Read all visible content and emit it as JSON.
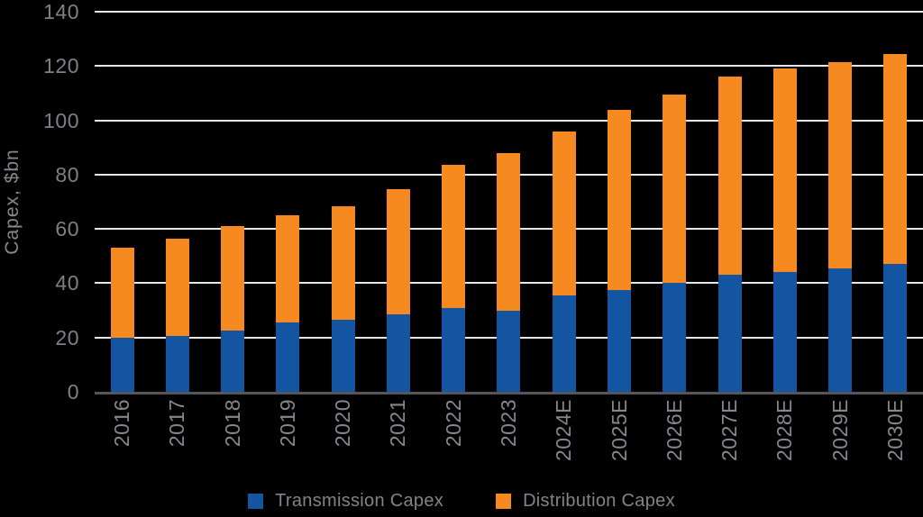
{
  "chart_data": {
    "type": "bar",
    "stacked": true,
    "title": "",
    "xlabel": "",
    "ylabel": "Capex, $bn",
    "ylim": [
      0,
      140
    ],
    "ytick_step": 20,
    "yticks": [
      0,
      20,
      40,
      60,
      80,
      100,
      120,
      140
    ],
    "grid": true,
    "legend_position": "bottom",
    "categories": [
      "2016",
      "2017",
      "2018",
      "2019",
      "2020",
      "2021",
      "2022",
      "2023",
      "2024E",
      "2025E",
      "2026E",
      "2027E",
      "2028E",
      "2029E",
      "2030E"
    ],
    "series": [
      {
        "name": "Transmission Capex",
        "color": "#1355A0",
        "values": [
          20,
          20.5,
          22.5,
          25.5,
          26.5,
          28.5,
          31,
          30,
          35.5,
          37.5,
          40,
          43,
          44,
          45.5,
          47
        ]
      },
      {
        "name": "Distribution Capex",
        "color": "#F6891F",
        "values": [
          33,
          36,
          38.5,
          39.5,
          42,
          46,
          52.5,
          58,
          60.5,
          66.5,
          69.5,
          73,
          75,
          76,
          77.5
        ]
      }
    ],
    "totals": [
      53,
      56.5,
      61,
      65,
      68.5,
      74.5,
      83.5,
      88,
      96,
      104,
      109.5,
      116,
      119,
      121.5,
      124.5
    ]
  },
  "colors": {
    "background": "#000000",
    "gridline": "#E6E7E8",
    "zero_line": "#55565A",
    "axis_text": "#7D8084",
    "legend_text": "#828487"
  }
}
